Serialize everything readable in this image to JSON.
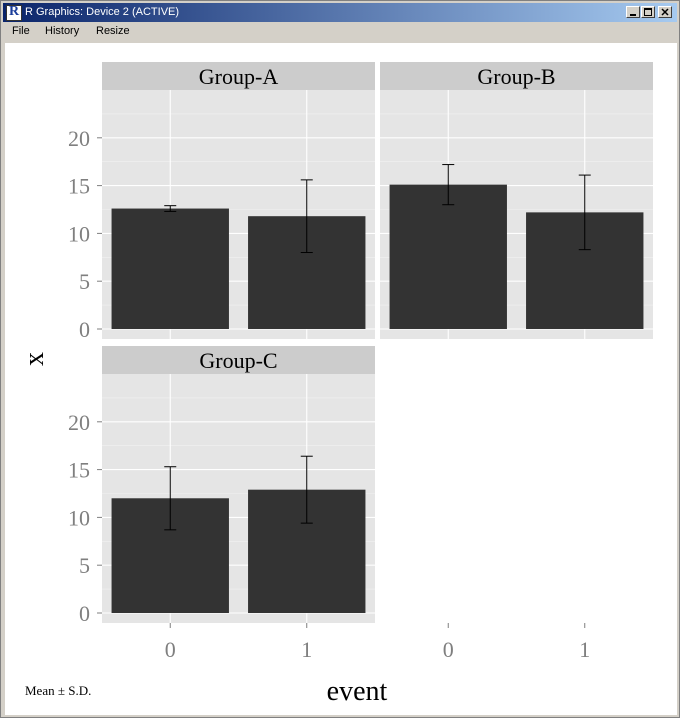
{
  "window": {
    "title": "R Graphics: Device 2 (ACTIVE)",
    "icon_letter": "R",
    "controls": [
      "minimize-icon",
      "maximize-icon",
      "close-icon"
    ]
  },
  "menu": {
    "file": "File",
    "history": "History",
    "resize": "Resize"
  },
  "chart_data": {
    "type": "bar",
    "facets": [
      "Group-A",
      "Group-B",
      "Group-C"
    ],
    "categories": [
      "0",
      "1"
    ],
    "xlabel": "event",
    "ylabel": "x",
    "ylim": [
      0,
      25
    ],
    "yticks": [
      0,
      5,
      10,
      15,
      20
    ],
    "grid": true,
    "caption": "Mean ± S.D.",
    "bar_color": "#333333",
    "panel_color": "#e5e5e5",
    "strip_color": "#cccccc",
    "panels": [
      {
        "name": "Group-A",
        "means": [
          12.6,
          11.8
        ],
        "sd": [
          0.3,
          3.8
        ]
      },
      {
        "name": "Group-B",
        "means": [
          15.1,
          12.2
        ],
        "sd": [
          2.1,
          3.9
        ]
      },
      {
        "name": "Group-C",
        "means": [
          12.0,
          12.9
        ],
        "sd": [
          3.3,
          3.5
        ]
      }
    ]
  }
}
